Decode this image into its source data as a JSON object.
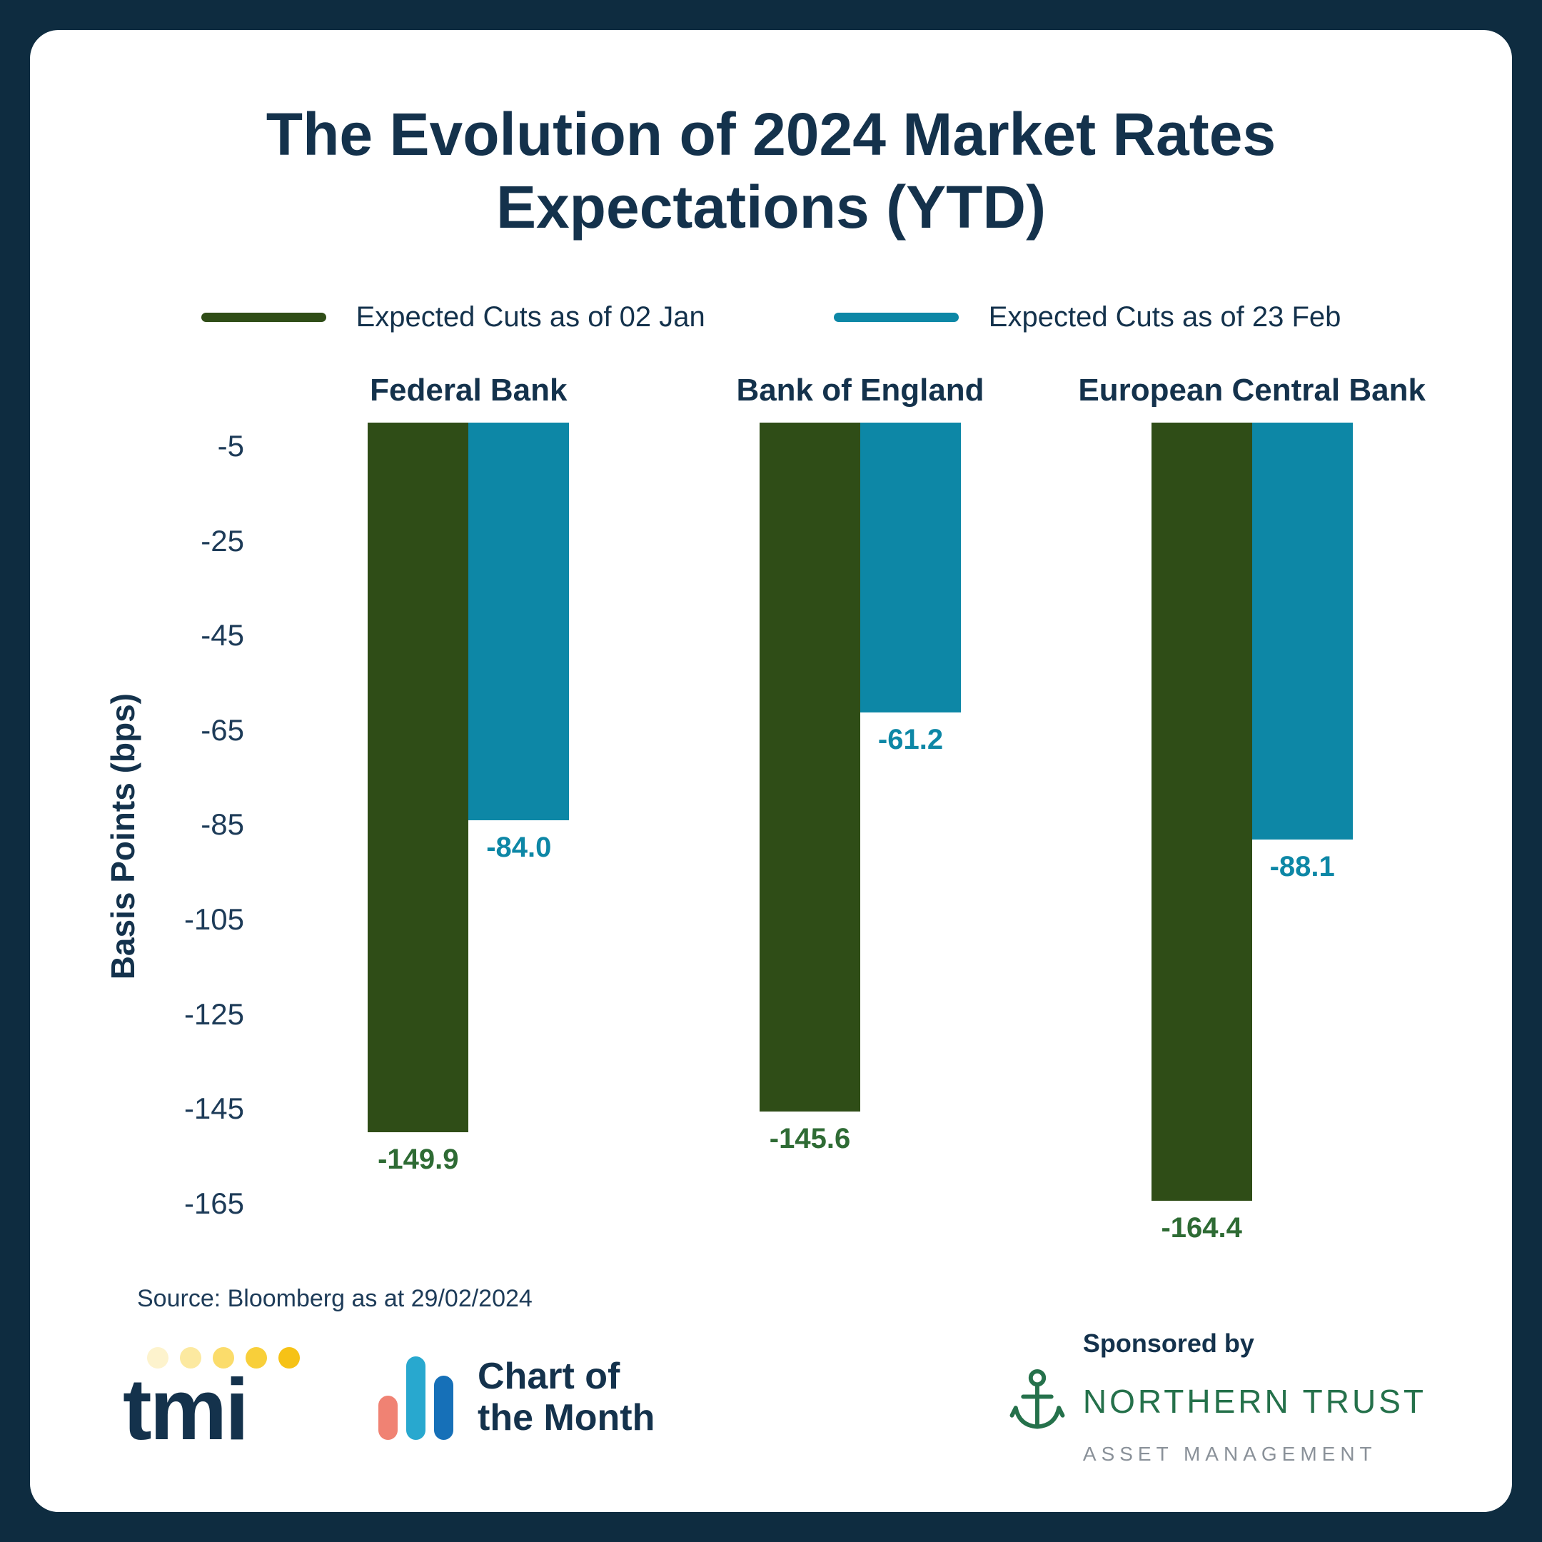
{
  "header": {
    "title_line1": "The Evolution of 2024 Market Rates",
    "title_line2": "Expectations (YTD)"
  },
  "chart_data": {
    "type": "bar",
    "title": "The Evolution of 2024 Market Rates Expectations (YTD)",
    "ylabel": "Basis Points (bps)",
    "ylim": [
      0,
      -175
    ],
    "yticks": [
      -5,
      -25,
      -45,
      -65,
      -85,
      -105,
      -125,
      -145,
      -165
    ],
    "grid": false,
    "legend_position": "top",
    "categories": [
      "Federal Bank",
      "Bank of England",
      "European Central Bank"
    ],
    "series": [
      {
        "name": "Expected Cuts as of 02 Jan",
        "color": "#2f4d17",
        "label_color": "#2e6b34",
        "values": [
          -149.9,
          -145.6,
          -164.4
        ],
        "labels": [
          "-149.9",
          "-145.6",
          "-164.4"
        ]
      },
      {
        "name": "Expected Cuts as of 23 Feb",
        "color": "#0d87a6",
        "label_color": "#0d87a6",
        "values": [
          -84.0,
          -61.2,
          -88.1
        ],
        "labels": [
          "-84.0",
          "-61.2",
          "-88.1"
        ]
      }
    ]
  },
  "source": "Source: Bloomberg as at 29/02/2024",
  "footer": {
    "logo_text": "tmi",
    "chart_of_month_line1": "Chart of",
    "chart_of_month_line2": "the Month",
    "sponsored_by": "Sponsored by",
    "sponsor_name": "NORTHERN TRUST",
    "sponsor_tagline": "ASSET MANAGEMENT"
  },
  "colors": {
    "background": "#0e2c40",
    "card": "#ffffff",
    "text_navy": "#14324c",
    "green_bar": "#2f4d17",
    "teal_bar": "#0d87a6",
    "tmi_dots": [
      "#fdf3cd",
      "#fce9a0",
      "#fbdc6b",
      "#f8cf3a",
      "#f6c216"
    ],
    "com_icon_bars": [
      "#f08273",
      "#28a8cf",
      "#1670b8"
    ],
    "sponsor_green": "#25714b"
  }
}
